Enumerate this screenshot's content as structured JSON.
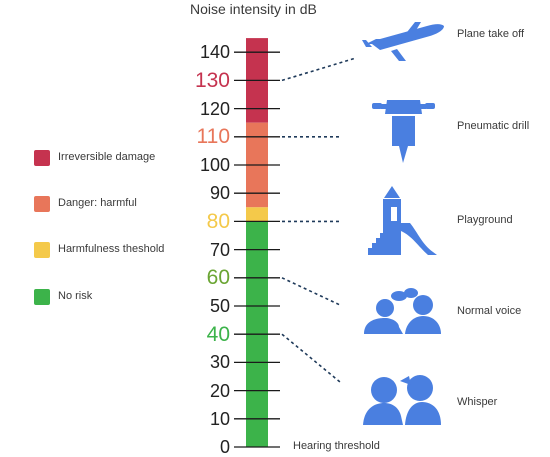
{
  "title": "Noise intensity in dB",
  "legend": [
    {
      "label": "Irreversible damage",
      "color": "#c5334f"
    },
    {
      "label": "Danger: harmful",
      "color": "#e8765a"
    },
    {
      "label": "Harmfulness theshold",
      "color": "#f4c94a"
    },
    {
      "label": "No risk",
      "color": "#3cb34a"
    }
  ],
  "scale": {
    "min": 0,
    "max": 140,
    "top": 145,
    "ticks": [
      "0",
      "10",
      "20",
      "30",
      "40",
      "50",
      "60",
      "70",
      "80",
      "90",
      "100",
      "110",
      "120",
      "130",
      "140"
    ],
    "highlighted": [
      {
        "value": "130",
        "color": "#c5334f"
      },
      {
        "value": "110",
        "color": "#e8765a"
      },
      {
        "value": "80",
        "color": "#f4c94a"
      },
      {
        "value": "60",
        "color": "#6aa533"
      },
      {
        "value": "40",
        "color": "#3cb34a"
      }
    ],
    "bands": [
      {
        "from": 115,
        "to": 145,
        "color": "#c5334f"
      },
      {
        "from": 85,
        "to": 115,
        "color": "#e8765a"
      },
      {
        "from": 80,
        "to": 85,
        "color": "#f4c94a"
      },
      {
        "from": 0,
        "to": 80,
        "color": "#3cb34a"
      }
    ]
  },
  "sources": [
    {
      "label": "Plane take off",
      "db": 130,
      "icon": "plane-icon"
    },
    {
      "label": "Pneumatic drill",
      "db": 110,
      "icon": "pneumatic-drill-icon"
    },
    {
      "label": "Playground",
      "db": 80,
      "icon": "playground-icon"
    },
    {
      "label": "Normal voice",
      "db": 60,
      "icon": "conversation-icon"
    },
    {
      "label": "Whisper",
      "db": 40,
      "icon": "whisper-icon"
    }
  ],
  "hearing_threshold": "Hearing threshold",
  "icon_color": "#4a7fe0"
}
